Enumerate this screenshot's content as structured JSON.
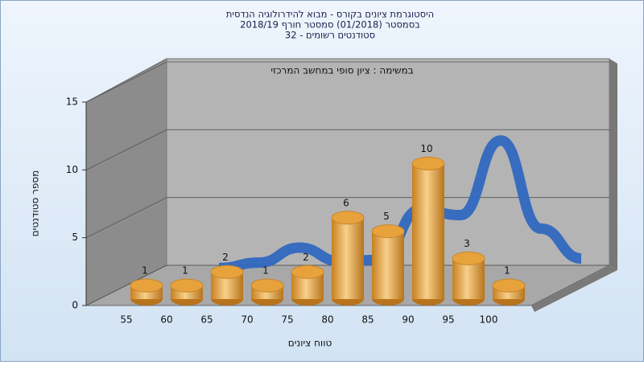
{
  "chart_data": {
    "type": "bar",
    "title": [
      "היסטוגרמת ציונים בקורס - מבוא להידרולוגיה הנדסית",
      "בסמסטר  (01/2018)  סמסטר חורף  2018/19",
      "סטודנטים רשומים - 32"
    ],
    "subtitle": "במשימה : ציון סופי במחשב המרכזי",
    "x_label": "טווח ציונים",
    "y_label": "מספר סטודנטים",
    "categories": [
      "55",
      "60",
      "65",
      "70",
      "75",
      "80",
      "85",
      "90",
      "95",
      "100"
    ],
    "series": [
      {
        "type": "bar",
        "color": "#e8a23c",
        "values": [
          1,
          1,
          2,
          1,
          2,
          6,
          5,
          10,
          3,
          1
        ]
      },
      {
        "type": "line",
        "color": "#3068c0",
        "values": [
          0.1,
          0.5,
          1.6,
          0.6,
          0.7,
          4.4,
          4.0,
          9.5,
          3.0,
          0.8
        ]
      }
    ],
    "ylim": [
      0,
      15
    ],
    "yticks": [
      0,
      5,
      10,
      15
    ],
    "grid": true
  }
}
